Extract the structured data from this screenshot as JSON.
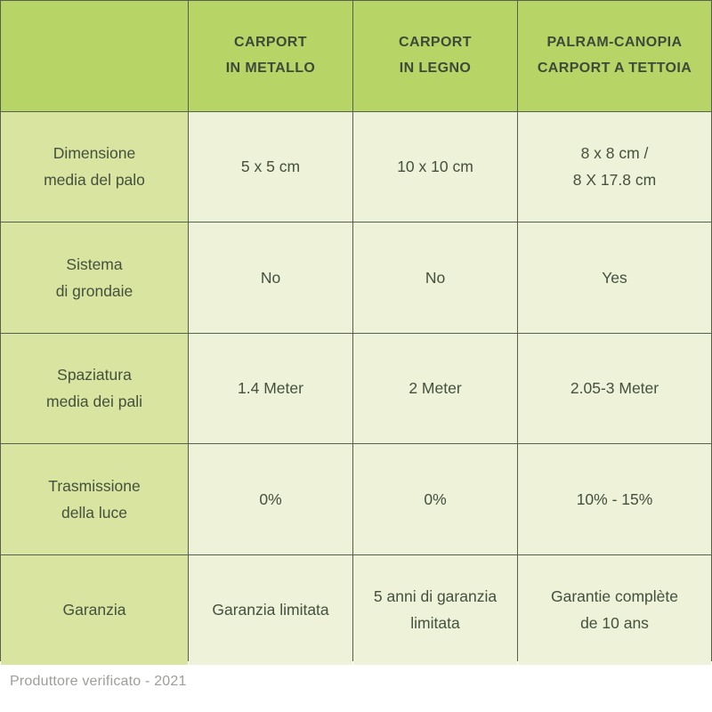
{
  "colors": {
    "header_bg": "#b7d466",
    "label_bg": "#d8e49f",
    "cell_bg": "#edf2d9",
    "border": "#57604f",
    "header_text": "#3e4a39",
    "body_text": "#45503e",
    "footer_text": "#9c9f99"
  },
  "table": {
    "header": [
      {
        "id": "blank",
        "lines": []
      },
      {
        "id": "carport-in-metallo",
        "lines": [
          "CARPORT",
          "IN METALLO"
        ]
      },
      {
        "id": "carport-in-legno",
        "lines": [
          "CARPORT",
          "IN LEGNO"
        ]
      },
      {
        "id": "palram-canopia-carport-a-tettoia",
        "lines": [
          "PALRAM-CANOPIA",
          "CARPORT A TETTOIA"
        ]
      }
    ],
    "rows": [
      {
        "id": "dimensione-media-del-palo",
        "label_lines": [
          "Dimensione",
          "media del palo"
        ],
        "cells": [
          [
            "5 x 5 cm"
          ],
          [
            "10 x 10 cm"
          ],
          [
            "8 x 8 cm /",
            "8 X 17.8 cm"
          ]
        ]
      },
      {
        "id": "sistema-di-grondaie",
        "label_lines": [
          "Sistema",
          "di grondaie"
        ],
        "cells": [
          [
            "No"
          ],
          [
            "No"
          ],
          [
            "Yes"
          ]
        ]
      },
      {
        "id": "spaziatura-media-dei-pali",
        "label_lines": [
          "Spaziatura",
          "media dei pali"
        ],
        "cells": [
          [
            "1.4 Meter"
          ],
          [
            "2 Meter"
          ],
          [
            "2.05-3 Meter"
          ]
        ]
      },
      {
        "id": "trasmissione-della-luce",
        "label_lines": [
          "Trasmissione",
          "della luce"
        ],
        "cells": [
          [
            "0%"
          ],
          [
            "0%"
          ],
          [
            "10% - 15%"
          ]
        ]
      },
      {
        "id": "garanzia",
        "label_lines": [
          "Garanzia"
        ],
        "cells": [
          [
            "Garanzia limitata"
          ],
          [
            "5 anni di garanzia",
            "limitata"
          ],
          [
            "Garantie complète",
            "de 10 ans"
          ]
        ]
      }
    ]
  },
  "footer": {
    "note": "Produttore verificato - 2021"
  },
  "chart_data": {
    "type": "table",
    "title": "",
    "columns": [
      "",
      "CARPORT IN METALLO",
      "CARPORT IN LEGNO",
      "PALRAM-CANOPIA CARPORT A TETTOIA"
    ],
    "rows": [
      [
        "Dimensione media del palo",
        "5 x 5 cm",
        "10 x 10 cm",
        "8 x 8 cm / 8 X 17.8 cm"
      ],
      [
        "Sistema di grondaie",
        "No",
        "No",
        "Yes"
      ],
      [
        "Spaziatura media dei pali",
        "1.4 Meter",
        "2 Meter",
        "2.05-3 Meter"
      ],
      [
        "Trasmissione della luce",
        "0%",
        "0%",
        "10% - 15%"
      ],
      [
        "Garanzia",
        "Garanzia limitata",
        "5 anni di garanzia limitata",
        "Garantie complète de 10 ans"
      ]
    ],
    "footnote": "Produttore verificato - 2021",
    "layout": {
      "grid": "on",
      "header_row_shaded": true,
      "label_column_shaded": true
    }
  }
}
